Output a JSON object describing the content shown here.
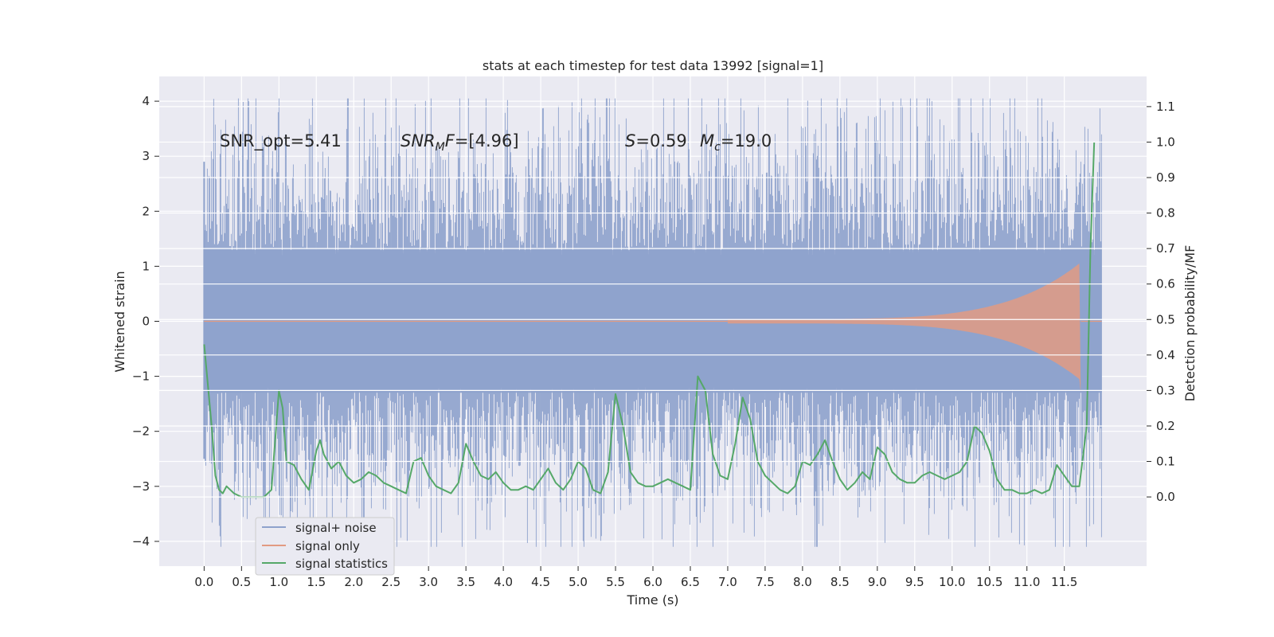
{
  "chart_data": {
    "type": "line",
    "title": "stats at each timestep for test data 13992 [signal=1]",
    "xlabel": "Time (s)",
    "ylabel_left": "Whitened strain",
    "ylabel_right": "Detection probability/MF",
    "xlim": [
      -0.6,
      12.6
    ],
    "ylim_left": [
      -4.45,
      4.45
    ],
    "ylim_right": [
      -0.195,
      1.185
    ],
    "x_ticks": [
      "0.0",
      "0.5",
      "1.0",
      "1.5",
      "2.0",
      "2.5",
      "3.0",
      "3.5",
      "4.0",
      "4.5",
      "5.0",
      "5.5",
      "6.0",
      "6.5",
      "7.0",
      "7.5",
      "8.0",
      "8.5",
      "9.0",
      "9.5",
      "10.0",
      "10.5",
      "11.0",
      "11.5"
    ],
    "y_ticks_left": [
      "4",
      "3",
      "2",
      "1",
      "0",
      "−1",
      "−2",
      "−3",
      "−4"
    ],
    "y_ticks_right": [
      "1.1",
      "1.0",
      "0.9",
      "0.8",
      "0.7",
      "0.6",
      "0.5",
      "0.4",
      "0.3",
      "0.2",
      "0.1",
      "0.0"
    ],
    "grid": true,
    "legend_position": "bottom-left",
    "annotations": {
      "snr_opt": "SNR_opt=5.41",
      "snr_mf": "=[4.96]",
      "s_value": "=0.59",
      "mc_value": "=19.0"
    },
    "series": [
      {
        "name": "signal+ noise",
        "color": "#8ea2cc",
        "x_range": [
          0.0,
          12.0
        ],
        "noise_std": 0.62,
        "peak_max": 4.05,
        "peak_min": -4.1
      },
      {
        "name": "signal only",
        "color": "#e29b82",
        "x_range": [
          7.0,
          11.7
        ],
        "envelope_max": 1.05,
        "end_x": 11.7
      },
      {
        "name": "signal statistics",
        "color": "#55a868",
        "axis": "right",
        "x": [
          0.0,
          0.1,
          0.15,
          0.2,
          0.25,
          0.3,
          0.35,
          0.4,
          0.5,
          0.6,
          0.7,
          0.8,
          0.9,
          1.0,
          1.05,
          1.1,
          1.2,
          1.3,
          1.4,
          1.5,
          1.55,
          1.6,
          1.7,
          1.8,
          1.9,
          2.0,
          2.1,
          2.2,
          2.3,
          2.4,
          2.5,
          2.6,
          2.7,
          2.8,
          2.9,
          3.0,
          3.1,
          3.2,
          3.3,
          3.4,
          3.5,
          3.6,
          3.7,
          3.8,
          3.9,
          4.0,
          4.1,
          4.2,
          4.3,
          4.4,
          4.5,
          4.6,
          4.7,
          4.8,
          4.9,
          5.0,
          5.1,
          5.2,
          5.3,
          5.4,
          5.5,
          5.6,
          5.7,
          5.8,
          5.9,
          6.0,
          6.1,
          6.2,
          6.3,
          6.4,
          6.5,
          6.6,
          6.7,
          6.8,
          6.9,
          7.0,
          7.1,
          7.2,
          7.3,
          7.4,
          7.5,
          7.6,
          7.7,
          7.8,
          7.9,
          8.0,
          8.1,
          8.2,
          8.3,
          8.4,
          8.5,
          8.6,
          8.7,
          8.8,
          8.9,
          9.0,
          9.1,
          9.2,
          9.3,
          9.4,
          9.5,
          9.6,
          9.7,
          9.8,
          9.9,
          10.0,
          10.1,
          10.2,
          10.3,
          10.4,
          10.5,
          10.6,
          10.7,
          10.8,
          10.9,
          11.0,
          11.1,
          11.2,
          11.3,
          11.4,
          11.5,
          11.6,
          11.7,
          11.8,
          11.85,
          11.9
        ],
        "y": [
          0.43,
          0.2,
          0.06,
          0.02,
          0.01,
          0.03,
          0.02,
          0.01,
          0.0,
          0.0,
          0.0,
          0.0,
          0.02,
          0.3,
          0.25,
          0.1,
          0.09,
          0.05,
          0.02,
          0.13,
          0.16,
          0.12,
          0.08,
          0.1,
          0.06,
          0.04,
          0.05,
          0.07,
          0.06,
          0.04,
          0.03,
          0.02,
          0.01,
          0.1,
          0.11,
          0.06,
          0.03,
          0.02,
          0.01,
          0.04,
          0.15,
          0.1,
          0.06,
          0.05,
          0.07,
          0.04,
          0.02,
          0.02,
          0.03,
          0.02,
          0.05,
          0.08,
          0.04,
          0.02,
          0.05,
          0.1,
          0.08,
          0.02,
          0.01,
          0.07,
          0.29,
          0.2,
          0.07,
          0.04,
          0.03,
          0.03,
          0.04,
          0.05,
          0.04,
          0.03,
          0.02,
          0.34,
          0.3,
          0.12,
          0.06,
          0.05,
          0.15,
          0.28,
          0.22,
          0.1,
          0.06,
          0.04,
          0.02,
          0.01,
          0.03,
          0.1,
          0.09,
          0.12,
          0.16,
          0.1,
          0.05,
          0.02,
          0.04,
          0.07,
          0.05,
          0.14,
          0.12,
          0.07,
          0.05,
          0.04,
          0.04,
          0.06,
          0.07,
          0.06,
          0.05,
          0.06,
          0.07,
          0.1,
          0.2,
          0.18,
          0.13,
          0.05,
          0.02,
          0.02,
          0.01,
          0.01,
          0.02,
          0.01,
          0.02,
          0.09,
          0.06,
          0.03,
          0.03,
          0.2,
          0.7,
          1.0
        ]
      }
    ]
  }
}
